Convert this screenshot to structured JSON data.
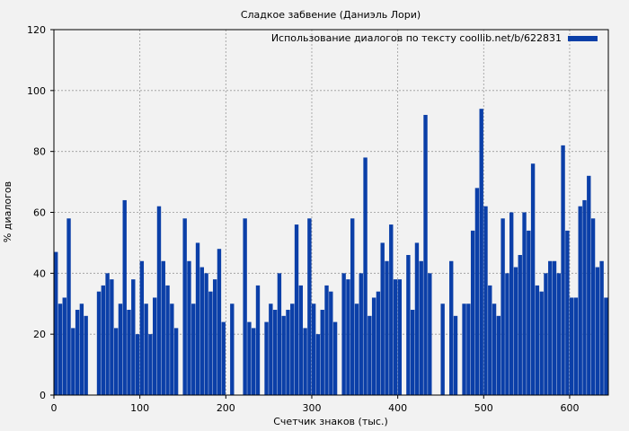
{
  "chart_data": {
    "type": "bar",
    "title": "Сладкое забвение (Даниэль Лори)",
    "xlabel": "Счетчик знаков (тыс.)",
    "ylabel": "% диалогов",
    "xlim": [
      0,
      645
    ],
    "ylim": [
      0,
      120
    ],
    "x_ticks": [
      0,
      100,
      200,
      300,
      400,
      500,
      600
    ],
    "y_ticks": [
      0,
      20,
      40,
      60,
      80,
      100,
      120
    ],
    "grid": true,
    "legend_position": "top-right",
    "colors": {
      "series": "#0b3fa8",
      "grid": "#999999",
      "axis": "#000000",
      "background": "#f2f2f2"
    },
    "series": [
      {
        "name": "Использование диалогов по тексту coollib.net/b/622831",
        "x_step": 5,
        "x": [
          0,
          5,
          10,
          15,
          20,
          25,
          30,
          35,
          40,
          45,
          50,
          55,
          60,
          65,
          70,
          75,
          80,
          85,
          90,
          95,
          100,
          105,
          110,
          115,
          120,
          125,
          130,
          135,
          140,
          145,
          150,
          155,
          160,
          165,
          170,
          175,
          180,
          185,
          190,
          195,
          200,
          205,
          210,
          215,
          220,
          225,
          230,
          235,
          240,
          245,
          250,
          255,
          260,
          265,
          270,
          275,
          280,
          285,
          290,
          295,
          300,
          305,
          310,
          315,
          320,
          325,
          330,
          335,
          340,
          345,
          350,
          355,
          360,
          365,
          370,
          375,
          380,
          385,
          390,
          395,
          400,
          405,
          410,
          415,
          420,
          425,
          430,
          435,
          440,
          445,
          450,
          455,
          460,
          465,
          470,
          475,
          480,
          485,
          490,
          495,
          500,
          505,
          510,
          515,
          520,
          525,
          530,
          535,
          540,
          545,
          550,
          555,
          560,
          565,
          570,
          575,
          580,
          585,
          590,
          595,
          600,
          605,
          610,
          615,
          620,
          625,
          630,
          635,
          640
        ],
        "values": [
          47,
          30,
          32,
          58,
          22,
          28,
          30,
          26,
          0,
          0,
          34,
          36,
          40,
          38,
          22,
          30,
          64,
          28,
          38,
          20,
          44,
          30,
          20,
          32,
          62,
          44,
          36,
          30,
          22,
          0,
          58,
          44,
          30,
          50,
          42,
          40,
          34,
          38,
          48,
          24,
          0,
          30,
          0,
          0,
          58,
          24,
          22,
          36,
          0,
          24,
          30,
          28,
          40,
          26,
          28,
          30,
          56,
          36,
          22,
          58,
          30,
          20,
          28,
          36,
          34,
          24,
          0,
          40,
          38,
          58,
          30,
          40,
          78,
          26,
          32,
          34,
          50,
          44,
          56,
          38,
          38,
          0,
          46,
          28,
          50,
          44,
          92,
          40,
          0,
          0,
          30,
          0,
          44,
          26,
          0,
          30,
          30,
          54,
          68,
          94,
          62,
          36,
          30,
          26,
          58,
          40,
          60,
          42,
          46,
          60,
          54,
          76,
          36,
          34,
          40,
          44,
          44,
          40,
          82,
          54,
          32,
          32,
          62,
          64,
          72,
          58,
          42,
          44,
          32
        ]
      }
    ]
  }
}
